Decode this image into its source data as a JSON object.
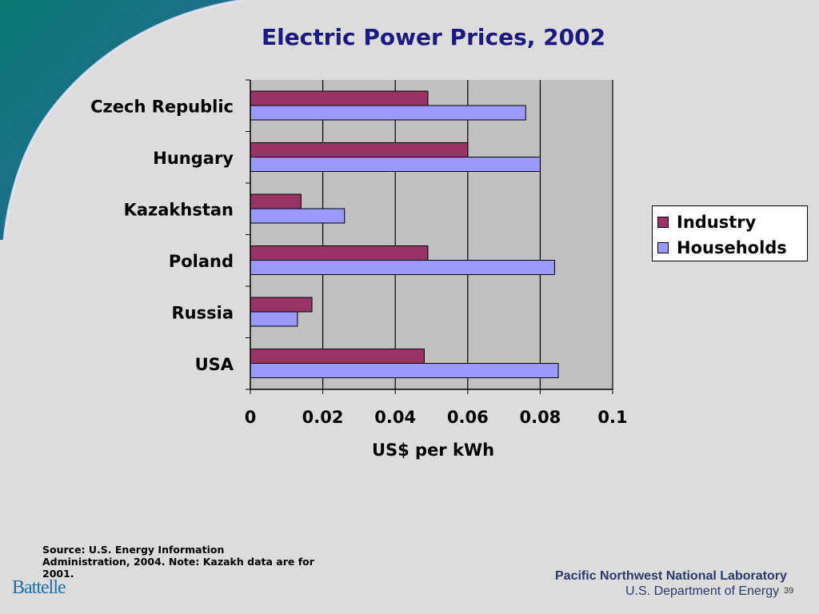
{
  "slide": {
    "title": "Electric Power Prices, 2002",
    "source_note": "Source: U.S. Energy Information Administration, 2004. Note: Kazakh data are for 2001.",
    "footer_logo": "Battelle",
    "footer_lab": "Pacific Northwest National Laboratory",
    "footer_dept": "U.S. Department of Energy",
    "page_number": "39"
  },
  "colors": {
    "industry": "#993366",
    "households": "#9999ff",
    "plot_bg": "#c0c0c0",
    "title": "#1a1a80"
  },
  "chart_data": {
    "type": "bar",
    "orientation": "horizontal",
    "categories": [
      "Czech Republic",
      "Hungary",
      "Kazakhstan",
      "Poland",
      "Russia",
      "USA"
    ],
    "series": [
      {
        "name": "Industry",
        "values": [
          0.049,
          0.06,
          0.014,
          0.049,
          0.017,
          0.048
        ]
      },
      {
        "name": "Households",
        "values": [
          0.076,
          0.08,
          0.026,
          0.084,
          0.013,
          0.085
        ]
      }
    ],
    "x_ticks": [
      "0",
      "0.02",
      "0.04",
      "0.06",
      "0.08",
      "0.1"
    ],
    "xlim": [
      0,
      0.1
    ],
    "xlabel": "US$ per kWh",
    "grid": true,
    "legend_position": "right"
  }
}
